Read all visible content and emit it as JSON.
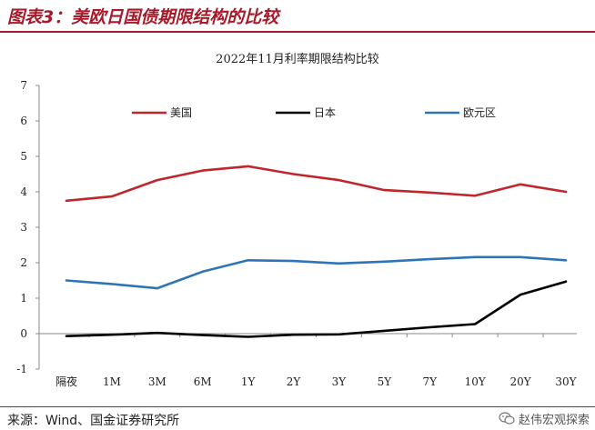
{
  "header": {
    "title": "图表3：美欧日国债期限结构的比较",
    "color": "#a8192a"
  },
  "footer": {
    "source": "来源：Wind、国金证券研究所",
    "watermark": "赵伟宏观探索",
    "watermark_icon": "wechat-icon"
  },
  "chart_data": {
    "type": "line",
    "title": "2022年11月利率期限结构比较",
    "categories": [
      "隔夜",
      "1M",
      "3M",
      "6M",
      "1Y",
      "2Y",
      "3Y",
      "5Y",
      "7Y",
      "10Y",
      "20Y",
      "30Y"
    ],
    "y_ticks": [
      "-1",
      "0",
      "1",
      "2",
      "3",
      "4",
      "5",
      "6",
      "7"
    ],
    "ylim": [
      -1,
      7
    ],
    "grid": false,
    "legend_position": "top",
    "series": [
      {
        "name": "美国",
        "color": "#c0272d",
        "values": [
          3.75,
          3.87,
          4.33,
          4.6,
          4.72,
          4.5,
          4.33,
          4.05,
          3.98,
          3.89,
          4.21,
          4.0
        ]
      },
      {
        "name": "日本",
        "color": "#000000",
        "values": [
          -0.07,
          -0.03,
          0.02,
          -0.04,
          -0.09,
          -0.03,
          -0.02,
          0.08,
          0.18,
          0.27,
          1.1,
          1.47
        ]
      },
      {
        "name": "欧元区",
        "color": "#2e75b6",
        "values": [
          1.5,
          1.4,
          1.28,
          1.75,
          2.07,
          2.05,
          1.98,
          2.03,
          2.1,
          2.16,
          2.16,
          2.07
        ]
      }
    ]
  }
}
